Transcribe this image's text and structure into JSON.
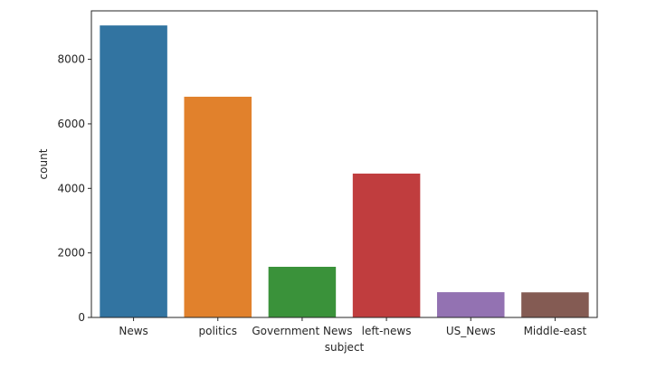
{
  "chart_data": {
    "type": "bar",
    "title": "",
    "xlabel": "subject",
    "ylabel": "count",
    "categories": [
      "News",
      "politics",
      "Government News",
      "left-news",
      "US_News",
      "Middle-east"
    ],
    "values": [
      9050,
      6841,
      1570,
      4459,
      783,
      778
    ],
    "colors": [
      "#3274a1",
      "#e1812c",
      "#3a923a",
      "#c03d3e",
      "#9372b2",
      "#845b53"
    ],
    "ylim": [
      0,
      9502
    ],
    "yticks": [
      0,
      2000,
      4000,
      6000,
      8000
    ],
    "grid": false,
    "legend": "none"
  }
}
